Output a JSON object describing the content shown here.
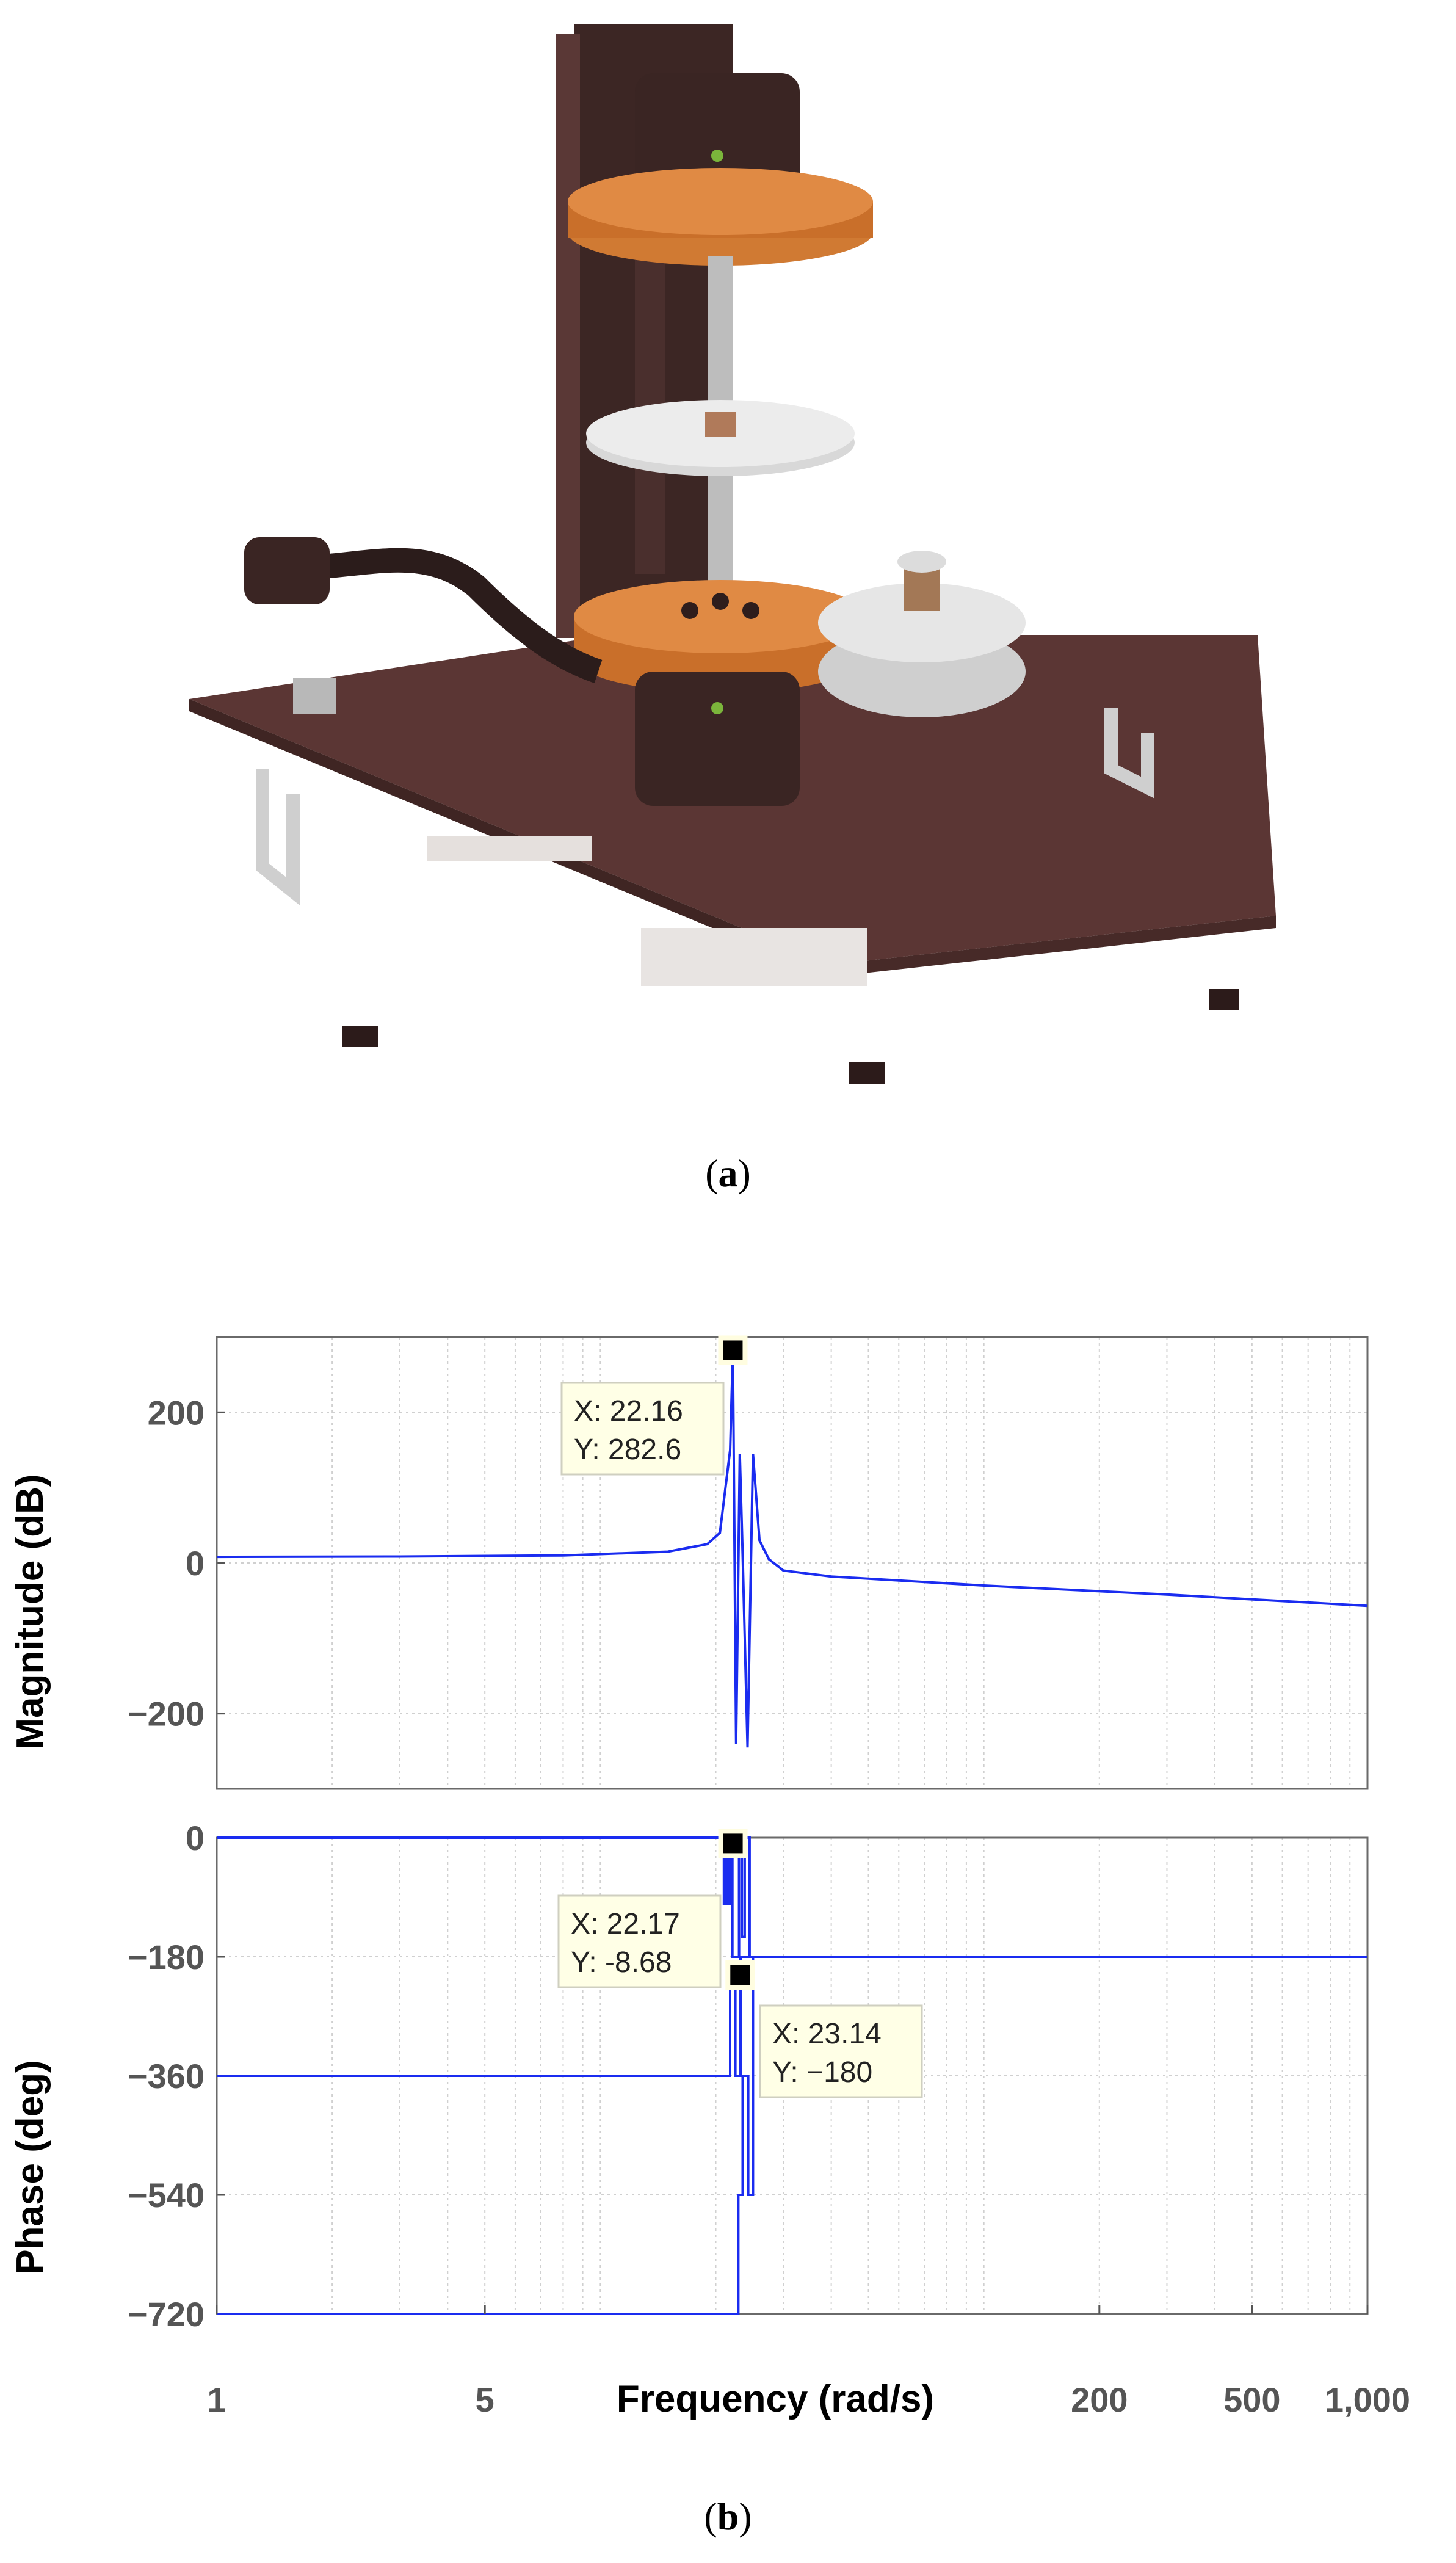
{
  "captions": {
    "a": "a",
    "b": "b"
  },
  "photo": {
    "subject": "experimental torsional plant apparatus",
    "colors": {
      "base": "#5a3532",
      "column": "#3d2624",
      "copper": "#d07a33",
      "disk": "#d8d8d8",
      "rod": "#b9b9b9"
    }
  },
  "chart_data": [
    {
      "type": "line",
      "title": "",
      "xlabel": "Frequency  (rad/s)",
      "ylabel": "Magnitude (dB)",
      "xscale": "log",
      "xlim": [
        1,
        1000
      ],
      "ylim": [
        -300,
        300
      ],
      "yticks": [
        -200,
        0,
        200
      ],
      "grid": true,
      "color": "#1a2cf0",
      "series": [
        {
          "x": [
            1,
            3,
            8,
            15,
            19,
            20.5,
            21.8,
            22.16,
            22.6,
            23.1,
            23.5,
            24.2,
            25,
            26,
            27.5,
            30,
            40,
            100,
            300,
            1000
          ],
          "values": [
            8,
            8.5,
            10,
            15,
            25,
            40,
            150,
            282.6,
            -240,
            145,
            10,
            -245,
            145,
            30,
            5,
            -10,
            -18,
            -30,
            -42,
            -57
          ]
        }
      ],
      "annotations": [
        {
          "x_label": "X: 22.16",
          "y_label": "Y: 282.6",
          "x": 22.16,
          "y": 282.6
        }
      ]
    },
    {
      "type": "line",
      "title": "",
      "xlabel": "Frequency  (rad/s)",
      "ylabel": "Phase (deg)",
      "xscale": "log",
      "xlim": [
        1,
        1000
      ],
      "ylim": [
        -720,
        0
      ],
      "yticks": [
        0,
        -180,
        -360,
        -540,
        -720
      ],
      "xticks": [
        1,
        5,
        200,
        500,
        1000
      ],
      "xtick_labels": [
        "1",
        "5",
        "200",
        "500",
        "1,000"
      ],
      "grid": true,
      "color": "#1a2cf0",
      "series": [
        {
          "x": [
            1,
            21.0,
            21.0,
            21.3,
            21.3,
            21.5,
            21.5,
            21.8,
            21.8,
            22.1,
            22.1,
            23.0,
            23.0,
            23.4,
            23.4,
            23.8,
            23.8,
            24.5,
            24.5,
            1000
          ],
          "values": [
            0,
            0,
            -100,
            -100,
            0,
            0,
            -100,
            -100,
            0,
            0,
            -180,
            -180,
            0,
            0,
            -150,
            -150,
            0,
            0,
            -180,
            -180
          ]
        },
        {
          "x": [
            1,
            21.8,
            21.8,
            22.5,
            22.5,
            23.2,
            23.2,
            24.0,
            24.0,
            1000
          ],
          "values": [
            -360,
            -360,
            -190,
            -190,
            -360,
            -360,
            -180,
            -180,
            -180,
            -180
          ]
        },
        {
          "x": [
            1,
            22.9,
            22.9,
            23.5,
            23.5,
            24.3,
            24.3,
            25.0,
            25.0,
            1000
          ],
          "values": [
            -720,
            -720,
            -540,
            -540,
            -360,
            -360,
            -540,
            -540,
            -180,
            -180
          ]
        }
      ],
      "annotations": [
        {
          "x_label": "X: 22.17",
          "y_label": "Y: -8.68",
          "x": 22.17,
          "y": -8.68
        },
        {
          "x_label": "X: 23.14",
          "y_label": "Y: −180",
          "x": 23.14,
          "y": -180
        }
      ]
    }
  ]
}
